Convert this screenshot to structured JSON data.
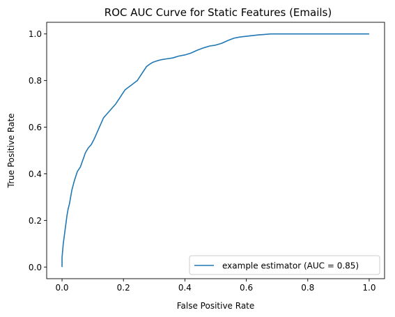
{
  "chart_data": {
    "type": "line",
    "title": "ROC AUC Curve for Static Features (Emails)",
    "xlabel": "False Positive Rate",
    "ylabel": "True Positive Rate",
    "xlim": [
      -0.05,
      1.05
    ],
    "ylim": [
      -0.05,
      1.05
    ],
    "x_ticks": [
      "0.0",
      "0.2",
      "0.4",
      "0.6",
      "0.8",
      "1.0"
    ],
    "y_ticks": [
      "0.0",
      "0.2",
      "0.4",
      "0.6",
      "0.8",
      "1.0"
    ],
    "grid": false,
    "legend_position": "lower-right",
    "series": [
      {
        "name": "example estimator (AUC = 0.85)",
        "color": "#1f77b4",
        "x": [
          0.0,
          0.0,
          0.002,
          0.004,
          0.006,
          0.008,
          0.01,
          0.013,
          0.016,
          0.02,
          0.024,
          0.028,
          0.032,
          0.036,
          0.04,
          0.045,
          0.05,
          0.055,
          0.06,
          0.068,
          0.076,
          0.085,
          0.095,
          0.105,
          0.115,
          0.125,
          0.135,
          0.145,
          0.155,
          0.165,
          0.175,
          0.185,
          0.195,
          0.205,
          0.215,
          0.225,
          0.235,
          0.245,
          0.255,
          0.265,
          0.275,
          0.285,
          0.295,
          0.31,
          0.325,
          0.34,
          0.36,
          0.38,
          0.4,
          0.42,
          0.44,
          0.46,
          0.48,
          0.5,
          0.52,
          0.54,
          0.56,
          0.58,
          0.6,
          0.62,
          0.64,
          0.66,
          0.68,
          1.0
        ],
        "y": [
          0.0,
          0.04,
          0.07,
          0.1,
          0.12,
          0.14,
          0.16,
          0.19,
          0.22,
          0.25,
          0.27,
          0.3,
          0.33,
          0.35,
          0.37,
          0.39,
          0.41,
          0.42,
          0.43,
          0.46,
          0.49,
          0.51,
          0.525,
          0.55,
          0.58,
          0.61,
          0.64,
          0.655,
          0.67,
          0.685,
          0.7,
          0.72,
          0.74,
          0.76,
          0.77,
          0.78,
          0.79,
          0.8,
          0.82,
          0.84,
          0.86,
          0.87,
          0.878,
          0.885,
          0.89,
          0.893,
          0.897,
          0.905,
          0.91,
          0.918,
          0.93,
          0.94,
          0.948,
          0.952,
          0.96,
          0.972,
          0.982,
          0.987,
          0.99,
          0.993,
          0.996,
          0.998,
          1.0,
          1.0
        ]
      }
    ]
  }
}
